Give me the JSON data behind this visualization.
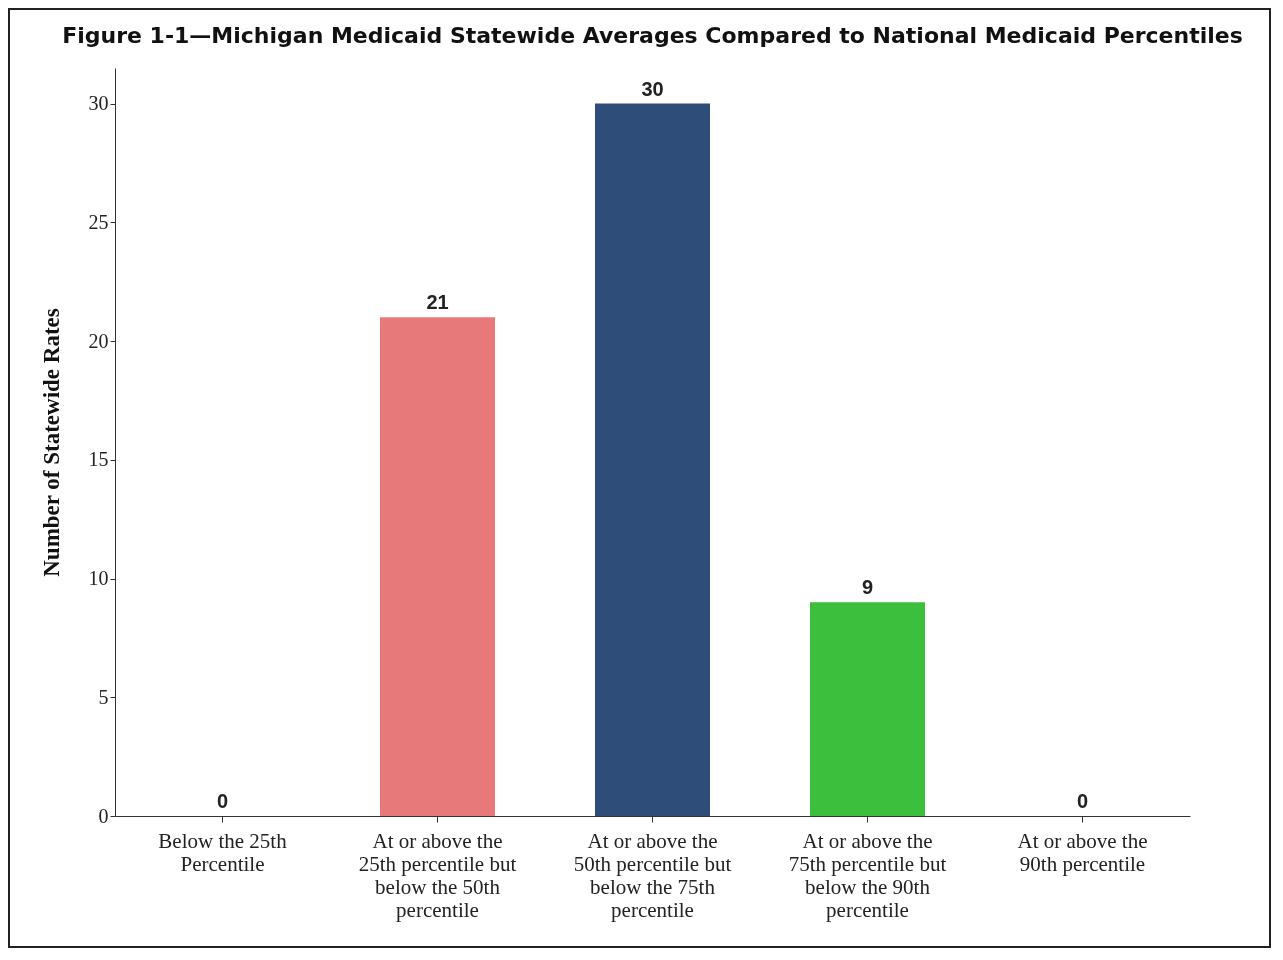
{
  "chart_data": {
    "type": "bar",
    "title": "Figure 1-1—Michigan Medicaid Statewide Averages Compared to National Medicaid Percentiles",
    "ylabel": "Number of Statewide Rates",
    "categories": [
      "Below the 25th Percentile",
      "At or above the 25th percentile but below the 50th percentile",
      "At or above the 50th percentile but below the 75th percentile",
      "At or above the 75th percentile but below the 90th percentile",
      "At or above the 90th percentile"
    ],
    "values": [
      0,
      21,
      30,
      9,
      0
    ],
    "colors": [
      "#7f7f7f",
      "#e8797a",
      "#2e4d78",
      "#3cbf3c",
      "#7f7f7f"
    ],
    "ylim": [
      0,
      31.5
    ],
    "yticks": [
      0,
      5,
      10,
      15,
      20,
      25,
      30
    ],
    "data_labels": true
  }
}
